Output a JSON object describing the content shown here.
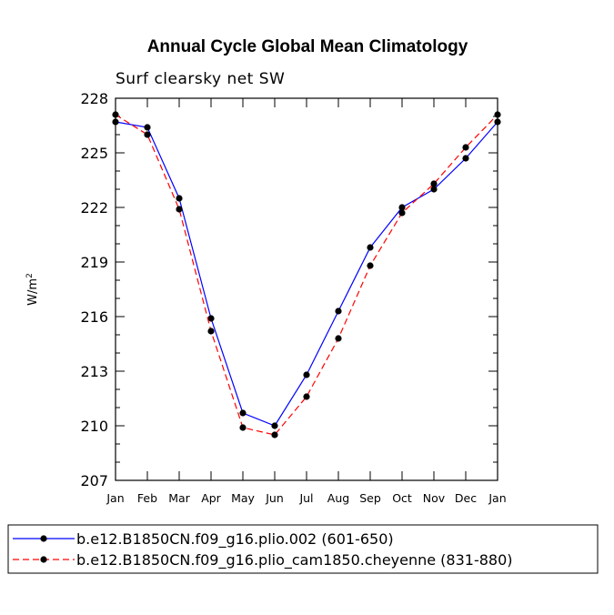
{
  "chart_data": {
    "type": "line",
    "title": "Annual Cycle Global Mean Climatology",
    "subtitle": "Surf clearsky net SW",
    "xlabel": "",
    "ylabel": "W/m",
    "ylabel_superscript": "2",
    "ylim": [
      207,
      228
    ],
    "yticks": [
      "207",
      "210",
      "213",
      "216",
      "219",
      "222",
      "225",
      "228"
    ],
    "categories": [
      "Jan",
      "Feb",
      "Mar",
      "Apr",
      "May",
      "Jun",
      "Jul",
      "Aug",
      "Sep",
      "Oct",
      "Nov",
      "Dec",
      "Jan"
    ],
    "series": [
      {
        "name": "b.e12.B1850CN.f09_g16.plio.002 (601-650)",
        "color": "#0000ff",
        "dash": "solid",
        "values": [
          226.7,
          226.4,
          222.5,
          215.9,
          210.7,
          210.0,
          212.8,
          216.3,
          219.8,
          222.0,
          223.0,
          224.7,
          226.7
        ]
      },
      {
        "name": "b.e12.B1850CN.f09_g16.plio_cam1850.cheyenne (831-880)",
        "color": "#ff0000",
        "dash": "dashed",
        "values": [
          227.1,
          226.0,
          221.9,
          215.2,
          209.9,
          209.5,
          211.6,
          214.8,
          218.8,
          221.7,
          223.3,
          225.3,
          227.1
        ]
      }
    ],
    "grid": false,
    "legend_position": "bottom"
  }
}
